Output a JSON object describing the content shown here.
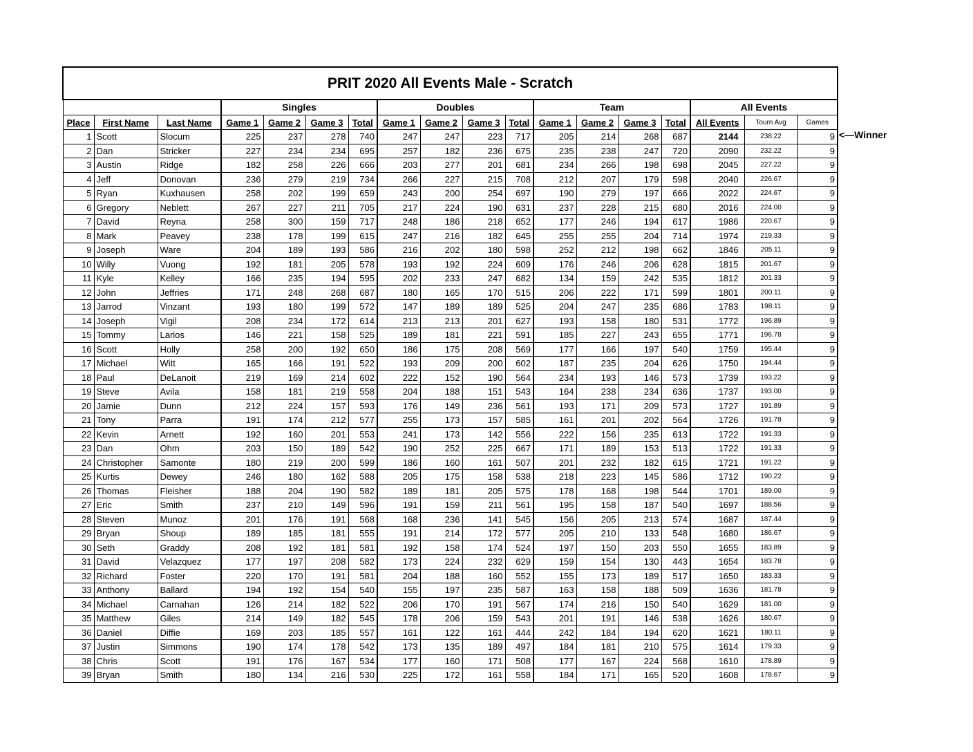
{
  "title": "PRIT 2020 All Events Male - Scratch",
  "groups": [
    "Singles",
    "Doubles",
    "Team",
    "All Events"
  ],
  "columns": [
    "Place",
    "First Name",
    "Last Name",
    "Game 1",
    "Game 2",
    "Game 3",
    "Total",
    "Game 1",
    "Game 2",
    "Game 3",
    "Total",
    "Game 1",
    "Game 2",
    "Game 3",
    "Total",
    "All Events",
    "Tourn Avg",
    "Games"
  ],
  "winner_note": "<—Winner",
  "rows": [
    [
      "1",
      "Scott",
      "Slocum",
      "225",
      "237",
      "278",
      "740",
      "247",
      "247",
      "223",
      "717",
      "205",
      "214",
      "268",
      "687",
      "2144",
      "238.22",
      "9"
    ],
    [
      "2",
      "Dan",
      "Stricker",
      "227",
      "234",
      "234",
      "695",
      "257",
      "182",
      "236",
      "675",
      "235",
      "238",
      "247",
      "720",
      "2090",
      "232.22",
      "9"
    ],
    [
      "3",
      "Austin",
      "Ridge",
      "182",
      "258",
      "226",
      "666",
      "203",
      "277",
      "201",
      "681",
      "234",
      "266",
      "198",
      "698",
      "2045",
      "227.22",
      "9"
    ],
    [
      "4",
      "Jeff",
      "Donovan",
      "236",
      "279",
      "219",
      "734",
      "266",
      "227",
      "215",
      "708",
      "212",
      "207",
      "179",
      "598",
      "2040",
      "226.67",
      "9"
    ],
    [
      "5",
      "Ryan",
      "Kuxhausen",
      "258",
      "202",
      "199",
      "659",
      "243",
      "200",
      "254",
      "697",
      "190",
      "279",
      "197",
      "666",
      "2022",
      "224.67",
      "9"
    ],
    [
      "6",
      "Gregory",
      "Neblett",
      "267",
      "227",
      "211",
      "705",
      "217",
      "224",
      "190",
      "631",
      "237",
      "228",
      "215",
      "680",
      "2016",
      "224.00",
      "9"
    ],
    [
      "7",
      "David",
      "Reyna",
      "258",
      "300",
      "159",
      "717",
      "248",
      "186",
      "218",
      "652",
      "177",
      "246",
      "194",
      "617",
      "1986",
      "220.67",
      "9"
    ],
    [
      "8",
      "Mark",
      "Peavey",
      "238",
      "178",
      "199",
      "615",
      "247",
      "216",
      "182",
      "645",
      "255",
      "255",
      "204",
      "714",
      "1974",
      "219.33",
      "9"
    ],
    [
      "9",
      "Joseph",
      "Ware",
      "204",
      "189",
      "193",
      "586",
      "216",
      "202",
      "180",
      "598",
      "252",
      "212",
      "198",
      "662",
      "1846",
      "205.11",
      "9"
    ],
    [
      "10",
      "Willy",
      "Vuong",
      "192",
      "181",
      "205",
      "578",
      "193",
      "192",
      "224",
      "609",
      "176",
      "246",
      "206",
      "628",
      "1815",
      "201.67",
      "9"
    ],
    [
      "11",
      "Kyle",
      "Kelley",
      "166",
      "235",
      "194",
      "595",
      "202",
      "233",
      "247",
      "682",
      "134",
      "159",
      "242",
      "535",
      "1812",
      "201.33",
      "9"
    ],
    [
      "12",
      "John",
      "Jeffries",
      "171",
      "248",
      "268",
      "687",
      "180",
      "165",
      "170",
      "515",
      "206",
      "222",
      "171",
      "599",
      "1801",
      "200.11",
      "9"
    ],
    [
      "13",
      "Jarrod",
      "Vinzant",
      "193",
      "180",
      "199",
      "572",
      "147",
      "189",
      "189",
      "525",
      "204",
      "247",
      "235",
      "686",
      "1783",
      "198.11",
      "9"
    ],
    [
      "14",
      "Joseph",
      "Vigil",
      "208",
      "234",
      "172",
      "614",
      "213",
      "213",
      "201",
      "627",
      "193",
      "158",
      "180",
      "531",
      "1772",
      "196.89",
      "9"
    ],
    [
      "15",
      "Tommy",
      "Larios",
      "146",
      "221",
      "158",
      "525",
      "189",
      "181",
      "221",
      "591",
      "185",
      "227",
      "243",
      "655",
      "1771",
      "196.78",
      "9"
    ],
    [
      "16",
      "Scott",
      "Holly",
      "258",
      "200",
      "192",
      "650",
      "186",
      "175",
      "208",
      "569",
      "177",
      "166",
      "197",
      "540",
      "1759",
      "195.44",
      "9"
    ],
    [
      "17",
      "Michael",
      "Witt",
      "165",
      "166",
      "191",
      "522",
      "193",
      "209",
      "200",
      "602",
      "187",
      "235",
      "204",
      "626",
      "1750",
      "194.44",
      "9"
    ],
    [
      "18",
      "Paul",
      "DeLanoit",
      "219",
      "169",
      "214",
      "602",
      "222",
      "152",
      "190",
      "564",
      "234",
      "193",
      "146",
      "573",
      "1739",
      "193.22",
      "9"
    ],
    [
      "19",
      "Steve",
      "Avila",
      "158",
      "181",
      "219",
      "558",
      "204",
      "188",
      "151",
      "543",
      "164",
      "238",
      "234",
      "636",
      "1737",
      "193.00",
      "9"
    ],
    [
      "20",
      "Jamie",
      "Dunn",
      "212",
      "224",
      "157",
      "593",
      "176",
      "149",
      "236",
      "561",
      "193",
      "171",
      "209",
      "573",
      "1727",
      "191.89",
      "9"
    ],
    [
      "21",
      "Tony",
      "Parra",
      "191",
      "174",
      "212",
      "577",
      "255",
      "173",
      "157",
      "585",
      "161",
      "201",
      "202",
      "564",
      "1726",
      "191.78",
      "9"
    ],
    [
      "22",
      "Kevin",
      "Arnett",
      "192",
      "160",
      "201",
      "553",
      "241",
      "173",
      "142",
      "556",
      "222",
      "156",
      "235",
      "613",
      "1722",
      "191.33",
      "9"
    ],
    [
      "23",
      "Dan",
      "Ohm",
      "203",
      "150",
      "189",
      "542",
      "190",
      "252",
      "225",
      "667",
      "171",
      "189",
      "153",
      "513",
      "1722",
      "191.33",
      "9"
    ],
    [
      "24",
      "Christopher",
      "Samonte",
      "180",
      "219",
      "200",
      "599",
      "186",
      "160",
      "161",
      "507",
      "201",
      "232",
      "182",
      "615",
      "1721",
      "191.22",
      "9"
    ],
    [
      "25",
      "Kurtis",
      "Dewey",
      "246",
      "180",
      "162",
      "588",
      "205",
      "175",
      "158",
      "538",
      "218",
      "223",
      "145",
      "586",
      "1712",
      "190.22",
      "9"
    ],
    [
      "26",
      "Thomas",
      "Fleisher",
      "188",
      "204",
      "190",
      "582",
      "189",
      "181",
      "205",
      "575",
      "178",
      "168",
      "198",
      "544",
      "1701",
      "189.00",
      "9"
    ],
    [
      "27",
      "Eric",
      "Smith",
      "237",
      "210",
      "149",
      "596",
      "191",
      "159",
      "211",
      "561",
      "195",
      "158",
      "187",
      "540",
      "1697",
      "188.56",
      "9"
    ],
    [
      "28",
      "Steven",
      "Munoz",
      "201",
      "176",
      "191",
      "568",
      "168",
      "236",
      "141",
      "545",
      "156",
      "205",
      "213",
      "574",
      "1687",
      "187.44",
      "9"
    ],
    [
      "29",
      "Bryan",
      "Shoup",
      "189",
      "185",
      "181",
      "555",
      "191",
      "214",
      "172",
      "577",
      "205",
      "210",
      "133",
      "548",
      "1680",
      "186.67",
      "9"
    ],
    [
      "30",
      "Seth",
      "Graddy",
      "208",
      "192",
      "181",
      "581",
      "192",
      "158",
      "174",
      "524",
      "197",
      "150",
      "203",
      "550",
      "1655",
      "183.89",
      "9"
    ],
    [
      "31",
      "David",
      "Velazquez",
      "177",
      "197",
      "208",
      "582",
      "173",
      "224",
      "232",
      "629",
      "159",
      "154",
      "130",
      "443",
      "1654",
      "183.78",
      "9"
    ],
    [
      "32",
      "Richard",
      "Foster",
      "220",
      "170",
      "191",
      "581",
      "204",
      "188",
      "160",
      "552",
      "155",
      "173",
      "189",
      "517",
      "1650",
      "183.33",
      "9"
    ],
    [
      "33",
      "Anthony",
      "Ballard",
      "194",
      "192",
      "154",
      "540",
      "155",
      "197",
      "235",
      "587",
      "163",
      "158",
      "188",
      "509",
      "1636",
      "181.78",
      "9"
    ],
    [
      "34",
      "Michael",
      "Carnahan",
      "126",
      "214",
      "182",
      "522",
      "206",
      "170",
      "191",
      "567",
      "174",
      "216",
      "150",
      "540",
      "1629",
      "181.00",
      "9"
    ],
    [
      "35",
      "Matthew",
      "Giles",
      "214",
      "149",
      "182",
      "545",
      "178",
      "206",
      "159",
      "543",
      "201",
      "191",
      "146",
      "538",
      "1626",
      "180.67",
      "9"
    ],
    [
      "36",
      "Daniel",
      "Diffie",
      "169",
      "203",
      "185",
      "557",
      "161",
      "122",
      "161",
      "444",
      "242",
      "184",
      "194",
      "620",
      "1621",
      "180.11",
      "9"
    ],
    [
      "37",
      "Justin",
      "Simmons",
      "190",
      "174",
      "178",
      "542",
      "173",
      "135",
      "189",
      "497",
      "184",
      "181",
      "210",
      "575",
      "1614",
      "179.33",
      "9"
    ],
    [
      "38",
      "Chris",
      "Scott",
      "191",
      "176",
      "167",
      "534",
      "177",
      "160",
      "171",
      "508",
      "177",
      "167",
      "224",
      "568",
      "1610",
      "178.89",
      "9"
    ],
    [
      "39",
      "Bryan",
      "Smith",
      "180",
      "134",
      "216",
      "530",
      "225",
      "172",
      "161",
      "558",
      "184",
      "171",
      "165",
      "520",
      "1608",
      "178.67",
      "9"
    ]
  ]
}
